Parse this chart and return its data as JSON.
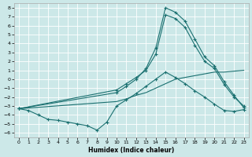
{
  "xlabel": "Humidex (Indice chaleur)",
  "bg_color": "#cce8e8",
  "line_color": "#1a7070",
  "grid_color": "#ffffff",
  "xlim": [
    -0.5,
    23.5
  ],
  "ylim": [
    -6.5,
    8.5
  ],
  "xticks": [
    0,
    1,
    2,
    3,
    4,
    5,
    6,
    7,
    8,
    9,
    10,
    11,
    12,
    13,
    14,
    15,
    16,
    17,
    18,
    19,
    20,
    21,
    22,
    23
  ],
  "yticks": [
    -6,
    -5,
    -4,
    -3,
    -2,
    -1,
    0,
    1,
    2,
    3,
    4,
    5,
    6,
    7,
    8
  ],
  "line_wavy_x": [
    0,
    1,
    2,
    3,
    4,
    5,
    6,
    7,
    8,
    9,
    10,
    11,
    12,
    13,
    14,
    15,
    16,
    17,
    18,
    19,
    20,
    21,
    22,
    23
  ],
  "line_wavy_y": [
    -3.3,
    -3.5,
    -4.0,
    -4.5,
    -4.6,
    -4.8,
    -5.0,
    -5.2,
    -5.7,
    -4.8,
    -3.0,
    -2.3,
    -1.6,
    -0.8,
    0.0,
    0.8,
    0.2,
    -0.5,
    -1.3,
    -2.0,
    -2.8,
    -3.5,
    -3.6,
    -3.4
  ],
  "line_peak_x": [
    0,
    10,
    11,
    12,
    13,
    14,
    15,
    16,
    17,
    18,
    19,
    20,
    21,
    22,
    23
  ],
  "line_peak_y": [
    -3.3,
    -1.5,
    -0.8,
    -0.0,
    1.2,
    3.5,
    8.0,
    7.5,
    6.5,
    4.5,
    2.5,
    1.5,
    -0.3,
    -1.8,
    -3.2
  ],
  "line_mid_x": [
    0,
    10,
    11,
    12,
    13,
    14,
    15,
    16,
    17,
    18,
    19,
    20,
    21,
    22,
    23
  ],
  "line_mid_y": [
    -3.3,
    -1.2,
    -0.5,
    0.2,
    1.0,
    2.8,
    7.2,
    6.8,
    5.8,
    3.8,
    2.0,
    1.2,
    -0.6,
    -2.0,
    -3.0
  ],
  "line_flat_x": [
    0,
    10,
    11,
    12,
    13,
    14,
    15,
    16,
    17,
    18,
    19,
    20,
    21,
    22,
    23
  ],
  "line_flat_y": [
    -3.3,
    -2.5,
    -2.2,
    -1.8,
    -1.5,
    -1.0,
    -0.5,
    -0.0,
    0.2,
    0.4,
    0.6,
    0.8,
    0.8,
    0.9,
    1.0
  ]
}
